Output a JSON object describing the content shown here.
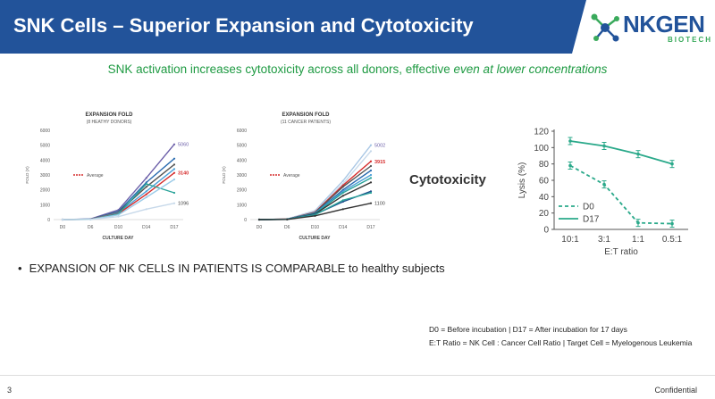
{
  "header": {
    "title": "SNK Cells – Superior Expansion and Cytotoxicity",
    "logo_text": "NKGEN",
    "logo_sub": "BIOTECH",
    "colors": {
      "bar": "#22539a",
      "accent": "#3aaa5c"
    }
  },
  "subtitle": {
    "main": "SNK activation increases cytotoxicity across all donors, effective ",
    "emph": "even at lower concentrations"
  },
  "cytotoxicity_label": "Cytotoxicity",
  "bullet_text": "EXPANSION OF NK CELLS IN PATIENTS IS COMPARABLE to healthy subjects",
  "notes": {
    "line1": "D0 = Before incubation  |  D17 = After incubation for 17 days",
    "line2": "E:T Ratio = NK Cell : Cancer Cell Ratio  |  Target Cell = Myelogenous Leukemia"
  },
  "footer": {
    "page_number": "3",
    "confidential": "Confidential"
  },
  "chart_data": [
    {
      "type": "line",
      "title": "EXPANSION FOLD",
      "subtitle": "(8 HEATHY DONORS)",
      "xlabel": "CULTURE DAY",
      "ylabel": "FOLD (X)",
      "categories": [
        "D0",
        "D6",
        "D10",
        "D14",
        "D17"
      ],
      "ylim": [
        0,
        6000
      ],
      "yticks": [
        0,
        1000,
        2000,
        3000,
        4000,
        5000,
        6000
      ],
      "legend": "Average",
      "annotations": [
        "5060",
        "3140",
        "1096"
      ],
      "series": [
        {
          "values": [
            0,
            40,
            650,
            2800,
            5060
          ],
          "color": "#6b5ea8"
        },
        {
          "values": [
            0,
            30,
            550,
            2500,
            4100
          ],
          "color": "#2b6cb0"
        },
        {
          "values": [
            0,
            25,
            500,
            2200,
            3700
          ],
          "color": "#555555"
        },
        {
          "values": [
            0,
            20,
            450,
            1900,
            3400
          ],
          "color": "#4ca0d8"
        },
        {
          "values": [
            0,
            20,
            400,
            1700,
            3140
          ],
          "color": "#d62c2c"
        },
        {
          "values": [
            0,
            15,
            380,
            2400,
            1800
          ],
          "color": "#2aa39a"
        },
        {
          "values": [
            0,
            12,
            320,
            1500,
            2700
          ],
          "color": "#9ccbe8"
        },
        {
          "values": [
            0,
            10,
            200,
            700,
            1096
          ],
          "color": "#c7d9ea"
        }
      ]
    },
    {
      "type": "line",
      "title": "EXPANSION FOLD",
      "subtitle": "(11 CANCER PATIENTS)",
      "xlabel": "CULTURE DAY",
      "ylabel": "FOLD (X)",
      "categories": [
        "D0",
        "D6",
        "D10",
        "D14",
        "D17"
      ],
      "ylim": [
        0,
        6000
      ],
      "yticks": [
        0,
        1000,
        2000,
        3000,
        4000,
        5000,
        6000
      ],
      "legend": "Average",
      "annotations": [
        "5002",
        "3915",
        "1100"
      ],
      "series": [
        {
          "values": [
            0,
            40,
            600,
            2600,
            5002
          ],
          "color": "#a9c7e5"
        },
        {
          "values": [
            0,
            35,
            550,
            2400,
            4600
          ],
          "color": "#c7d9ea"
        },
        {
          "values": [
            0,
            30,
            500,
            2300,
            3915
          ],
          "color": "#d62c2c"
        },
        {
          "values": [
            0,
            30,
            480,
            2200,
            3600
          ],
          "color": "#555555"
        },
        {
          "values": [
            0,
            25,
            450,
            2000,
            3300
          ],
          "color": "#2b6cb0"
        },
        {
          "values": [
            0,
            25,
            420,
            1900,
            3000
          ],
          "color": "#4ca0d8"
        },
        {
          "values": [
            0,
            20,
            400,
            1800,
            2800
          ],
          "color": "#2aa39a"
        },
        {
          "values": [
            0,
            20,
            380,
            1600,
            2500
          ],
          "color": "#333333"
        },
        {
          "values": [
            0,
            15,
            350,
            1200,
            1900
          ],
          "color": "#1f4e8c"
        },
        {
          "values": [
            0,
            15,
            320,
            1300,
            1800
          ],
          "color": "#2aa39a"
        },
        {
          "values": [
            0,
            10,
            250,
            700,
            1100
          ],
          "color": "#333333"
        }
      ]
    },
    {
      "type": "line",
      "ylabel": "Lysis (%)",
      "xlabel": "E:T ratio",
      "categories": [
        "10:1",
        "3:1",
        "1:1",
        "0.5:1"
      ],
      "ylim": [
        0,
        120
      ],
      "yticks": [
        0,
        20,
        40,
        60,
        80,
        100,
        120
      ],
      "series": [
        {
          "name": "D0",
          "values": [
            78,
            55,
            8,
            7
          ],
          "dashed": true,
          "color": "#2aa98a"
        },
        {
          "name": "D17",
          "values": [
            108,
            102,
            92,
            80
          ],
          "dashed": false,
          "color": "#2aa98a"
        }
      ]
    }
  ]
}
